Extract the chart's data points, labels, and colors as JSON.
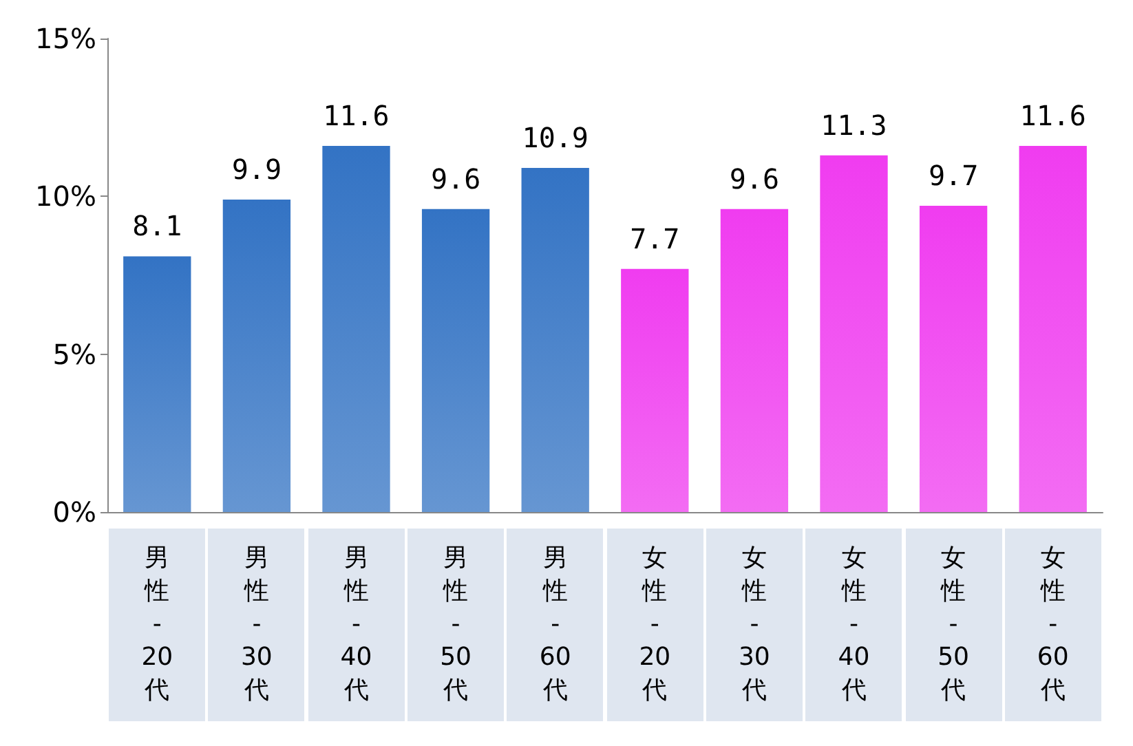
{
  "chart_data": {
    "type": "bar",
    "categories": [
      "男性-20代",
      "男性-30代",
      "男性-40代",
      "男性-50代",
      "男性-60代",
      "女性-20代",
      "女性-30代",
      "女性-40代",
      "女性-50代",
      "女性-60代"
    ],
    "values": [
      8.1,
      9.9,
      11.6,
      9.6,
      10.9,
      7.7,
      9.6,
      11.3,
      9.7,
      11.6
    ],
    "colors": [
      "#3373c4",
      "#3373c4",
      "#3373c4",
      "#3373c4",
      "#3373c4",
      "#f03cf0",
      "#f03cf0",
      "#f03cf0",
      "#f03cf0",
      "#f03cf0"
    ],
    "ylim": [
      0,
      15
    ],
    "yticks": [
      {
        "value": 0,
        "label": "0%"
      },
      {
        "value": 5,
        "label": "5%"
      },
      {
        "value": 10,
        "label": "10%"
      },
      {
        "value": 15,
        "label": "15%"
      }
    ],
    "data_labels": true,
    "grid": false
  }
}
